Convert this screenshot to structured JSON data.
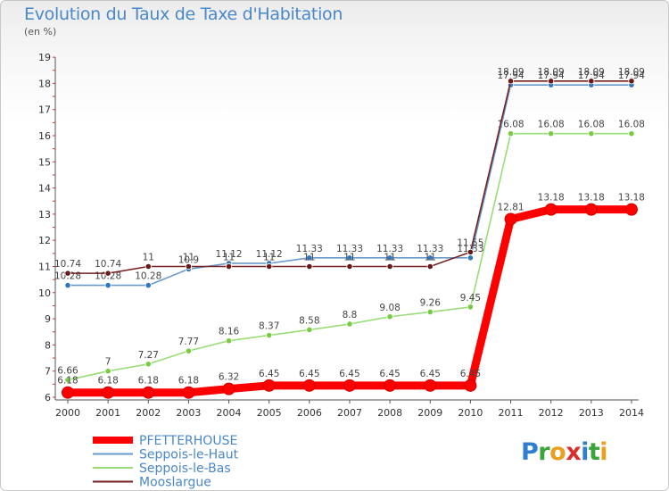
{
  "title": "Evolution du Taux de Taxe d'Habitation",
  "unit_label": "(en %)",
  "logo": {
    "text": "Proxiti",
    "letters": [
      {
        "c": "P",
        "color": "#2f7fd0"
      },
      {
        "c": "r",
        "color": "#3aa33a"
      },
      {
        "c": "o",
        "color": "#e8a020"
      },
      {
        "c": "x",
        "color": "#d83030"
      },
      {
        "c": "i",
        "color": "#2f7fd0"
      },
      {
        "c": "t",
        "color": "#3aa33a"
      },
      {
        "c": "i",
        "color": "#e8a020"
      }
    ]
  },
  "chart_data": {
    "type": "line",
    "title": "Evolution du Taux de Taxe d'Habitation",
    "ylabel": "(en %)",
    "xlabel": "",
    "x": [
      2000,
      2001,
      2002,
      2003,
      2004,
      2005,
      2006,
      2007,
      2008,
      2009,
      2010,
      2011,
      2012,
      2013,
      2014
    ],
    "ylim": [
      6,
      19
    ],
    "yticks": [
      6,
      7,
      8,
      9,
      10,
      11,
      12,
      13,
      14,
      15,
      16,
      17,
      18,
      19
    ],
    "grid": false,
    "legend_position": "bottom-left",
    "series": [
      {
        "name": "PFETTERHOUSE",
        "color": "#ff0000",
        "marker": "#ff0000",
        "values": [
          6.18,
          6.18,
          6.18,
          6.18,
          6.32,
          6.45,
          6.45,
          6.45,
          6.45,
          6.45,
          6.45,
          12.81,
          13.18,
          13.18,
          13.18
        ],
        "labels": [
          "6.18",
          "6.18",
          "6.18",
          "6.18",
          "6.32",
          "6.45",
          "6.45",
          "6.45",
          "6.45",
          "6.45",
          "6.45",
          "12.81",
          "13.18",
          "13.18",
          "13.18"
        ]
      },
      {
        "name": "Seppois-le-Haut",
        "color": "#6699cc",
        "marker": "#3377bb",
        "values": [
          10.28,
          10.28,
          10.28,
          10.9,
          11.12,
          11.12,
          11.33,
          11.33,
          11.33,
          11.33,
          11.33,
          17.94,
          17.94,
          17.94,
          17.94
        ],
        "labels": [
          "10.28",
          "10.28",
          "10.28",
          "10.9",
          "11.12",
          "11.12",
          "11.33",
          "11.33",
          "11.33",
          "11.33",
          "11.33",
          "17.94",
          "17.94",
          "17.94",
          "17.94"
        ]
      },
      {
        "name": "Seppois-le-Bas",
        "color": "#99dd77",
        "marker": "#77cc44",
        "values": [
          6.66,
          7,
          7.27,
          7.77,
          8.16,
          8.37,
          8.58,
          8.8,
          9.08,
          9.26,
          9.45,
          16.08,
          16.08,
          16.08,
          16.08
        ],
        "labels": [
          "6.66",
          "7",
          "7.27",
          "7.77",
          "8.16",
          "8.37",
          "8.58",
          "8.8",
          "9.08",
          "9.26",
          "9.45",
          "16.08",
          "16.08",
          "16.08",
          "16.08"
        ]
      },
      {
        "name": "Mooslargue",
        "color": "#772222",
        "marker": "#661a1a",
        "values": [
          10.74,
          10.74,
          11,
          11,
          11,
          11,
          11,
          11,
          11,
          11,
          11.55,
          18.09,
          18.09,
          18.09,
          18.09
        ],
        "labels": [
          "10.74",
          "10.74",
          "11",
          "11",
          "11",
          "11",
          "11",
          "11",
          "11",
          "11",
          "11.55",
          "18.09",
          "18.09",
          "18.09",
          "18.09"
        ]
      }
    ]
  }
}
